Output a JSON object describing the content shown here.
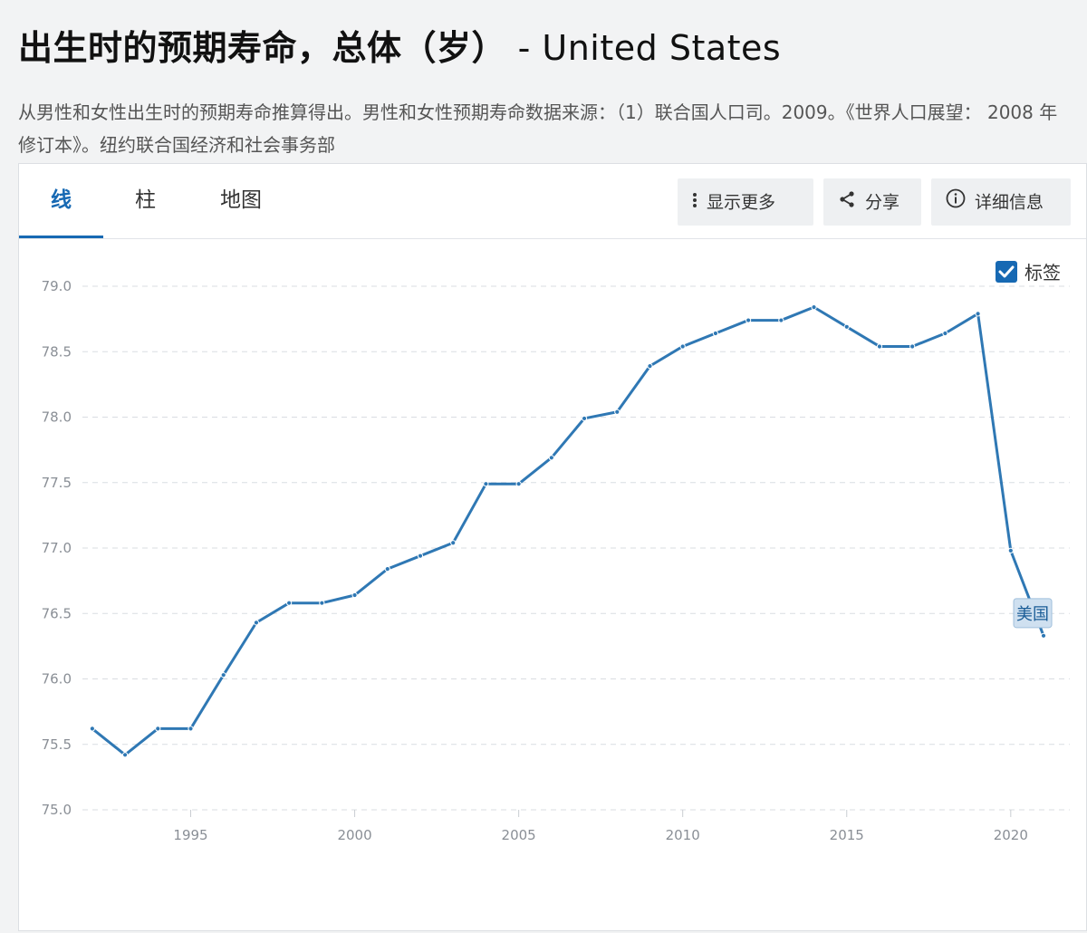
{
  "page": {
    "title": "出生时的预期寿命，总体（岁）",
    "title_country": " - United States",
    "description": "从男性和女性出生时的预期寿命推算得出。男性和女性预期寿命数据来源：（1）联合国人口司。2009。《世界人口展望： 2008 年修订本》。纽约联合国经济和社会事务部"
  },
  "tabs": [
    {
      "label": "线",
      "active": true
    },
    {
      "label": "柱",
      "active": false
    },
    {
      "label": "地图",
      "active": false
    }
  ],
  "actions": {
    "more": "显示更多",
    "share": "分享",
    "details": "详细信息"
  },
  "labels_toggle": {
    "label": "标签",
    "checked": true
  },
  "colors": {
    "accent": "#1769b3",
    "series": "#2f78b4",
    "grid": "#d9dde2"
  },
  "chart_data": {
    "type": "line",
    "ylim": [
      75.0,
      79.0
    ],
    "yticks": [
      "75.0",
      "75.5",
      "76.0",
      "76.5",
      "77.0",
      "77.5",
      "78.0",
      "78.5",
      "79.0"
    ],
    "xticks": [
      1995,
      2000,
      2005,
      2010,
      2015,
      2020
    ],
    "xlim": [
      1991.7,
      2021.8
    ],
    "grid": true,
    "series": [
      {
        "name": "美国",
        "x": [
          1992,
          1993,
          1994,
          1995,
          1996,
          1997,
          1998,
          1999,
          2000,
          2001,
          2002,
          2003,
          2004,
          2005,
          2006,
          2007,
          2008,
          2009,
          2010,
          2011,
          2012,
          2013,
          2014,
          2015,
          2016,
          2017,
          2018,
          2019,
          2020,
          2021
        ],
        "values": [
          75.62,
          75.42,
          75.62,
          75.62,
          76.03,
          76.43,
          76.58,
          76.58,
          76.64,
          76.84,
          76.94,
          77.04,
          77.49,
          77.49,
          77.69,
          77.99,
          78.04,
          78.39,
          78.54,
          78.64,
          78.74,
          78.74,
          78.84,
          78.69,
          78.54,
          78.54,
          78.64,
          78.79,
          76.98,
          76.33
        ]
      }
    ]
  }
}
